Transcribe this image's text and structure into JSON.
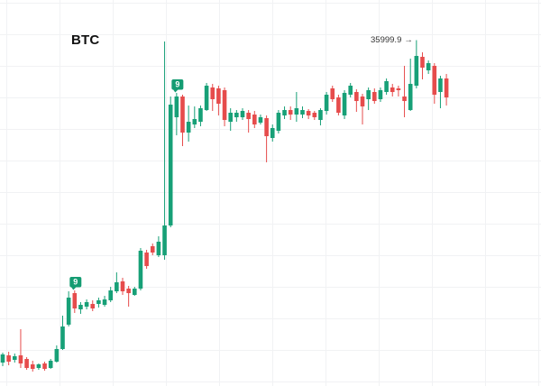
{
  "chart": {
    "title": "BTC"
  },
  "chart_data": {
    "type": "candlestick",
    "title": "BTC",
    "subtitle": "",
    "xlabel": "",
    "ylabel": "",
    "legend": "none",
    "grid": {
      "show": true,
      "h_offset": 3,
      "h_spacing": 35,
      "v_offset": 7,
      "v_spacing": 59
    },
    "ylim": [
      14140.4,
      38536.4
    ],
    "price_label": {
      "text": "35999.9",
      "arrow": "→",
      "candle_index": 69
    },
    "markers": [
      {
        "label": "9",
        "candle_index": 12
      },
      {
        "label": "9",
        "candle_index": 29
      }
    ],
    "colors": {
      "bull": "#17A077",
      "bear": "#E64C4C",
      "marker_bg": "#149C72",
      "marker_text": "#FFFFFF",
      "grid": "#F1F2F4",
      "label_text": "#333333",
      "title_text": "#111111",
      "background": "#FFFFFF"
    },
    "candles": [
      [
        15622,
        16249,
        15394,
        16135
      ],
      [
        16078,
        16306,
        15451,
        15679
      ],
      [
        15793,
        16192,
        15622,
        16021
      ],
      [
        16078,
        17731,
        15280,
        15565
      ],
      [
        15850,
        15964,
        15166,
        15280
      ],
      [
        15508,
        15736,
        15052,
        15223
      ],
      [
        15280,
        15565,
        15166,
        15508
      ],
      [
        15565,
        15679,
        15109,
        15223
      ],
      [
        15280,
        15850,
        15223,
        15736
      ],
      [
        15679,
        16705,
        15622,
        16477
      ],
      [
        16477,
        18586,
        16420,
        17902
      ],
      [
        18016,
        20125,
        17902,
        19726
      ],
      [
        20011,
        20182,
        18757,
        19042
      ],
      [
        18985,
        19441,
        18700,
        19270
      ],
      [
        19156,
        19612,
        18985,
        19441
      ],
      [
        19327,
        19555,
        18871,
        19042
      ],
      [
        19327,
        19726,
        19099,
        19555
      ],
      [
        19270,
        19840,
        19156,
        19612
      ],
      [
        19555,
        20410,
        19441,
        20182
      ],
      [
        20125,
        21322,
        20011,
        20695
      ],
      [
        20752,
        20980,
        19897,
        20125
      ],
      [
        20296,
        20467,
        19156,
        20011
      ],
      [
        19897,
        20410,
        19840,
        20296
      ],
      [
        20296,
        22861,
        20182,
        22690
      ],
      [
        22576,
        22747,
        21550,
        21721
      ],
      [
        22975,
        23146,
        22405,
        22576
      ],
      [
        22405,
        23602,
        22291,
        23260
      ],
      [
        22405,
        35914,
        22120,
        24286
      ],
      [
        24286,
        32437,
        24172,
        31924
      ],
      [
        31126,
        32665,
        29986,
        32437
      ],
      [
        32437,
        32551,
        29302,
        30157
      ],
      [
        30157,
        31867,
        29587,
        30841
      ],
      [
        30670,
        31810,
        30442,
        31012
      ],
      [
        30841,
        31867,
        30556,
        31696
      ],
      [
        31582,
        33292,
        31525,
        33121
      ],
      [
        33007,
        33235,
        31525,
        32266
      ],
      [
        32950,
        33121,
        31240,
        31981
      ],
      [
        32836,
        33007,
        30556,
        30955
      ],
      [
        30841,
        31696,
        30271,
        31411
      ],
      [
        31126,
        31582,
        30841,
        31411
      ],
      [
        31126,
        31696,
        30955,
        31525
      ],
      [
        31411,
        31582,
        30157,
        31012
      ],
      [
        31297,
        31525,
        30442,
        30670
      ],
      [
        30784,
        31297,
        30670,
        31126
      ],
      [
        31069,
        31240,
        28276,
        29929
      ],
      [
        29815,
        30670,
        29587,
        30442
      ],
      [
        30271,
        31582,
        30100,
        31411
      ],
      [
        31240,
        31810,
        31012,
        31582
      ],
      [
        31582,
        31810,
        30955,
        31297
      ],
      [
        31297,
        32722,
        30841,
        31696
      ],
      [
        31297,
        31810,
        31069,
        31582
      ],
      [
        31525,
        31639,
        31012,
        31240
      ],
      [
        31411,
        31525,
        30955,
        31126
      ],
      [
        30955,
        31696,
        30613,
        31582
      ],
      [
        31525,
        32722,
        31297,
        32551
      ],
      [
        32950,
        33121,
        32095,
        32266
      ],
      [
        32380,
        32551,
        31240,
        31411
      ],
      [
        31240,
        32836,
        31012,
        32665
      ],
      [
        32551,
        33292,
        32380,
        33121
      ],
      [
        32722,
        32893,
        31468,
        32152
      ],
      [
        32437,
        32608,
        30670,
        31810
      ],
      [
        32266,
        33007,
        31582,
        32836
      ],
      [
        32722,
        32950,
        31981,
        32152
      ],
      [
        32266,
        33007,
        32095,
        32836
      ],
      [
        32722,
        33577,
        32551,
        33406
      ],
      [
        33007,
        33235,
        32437,
        32722
      ],
      [
        32950,
        33121,
        32437,
        32836
      ],
      [
        32437,
        34375,
        31126,
        32152
      ],
      [
        31582,
        34831,
        31525,
        33235
      ],
      [
        33121,
        35999.9,
        32950,
        35002
      ],
      [
        34945,
        35230,
        33520,
        34261
      ],
      [
        34090,
        34717,
        33862,
        34546
      ],
      [
        34375,
        34546,
        31981,
        32551
      ],
      [
        32722,
        33748,
        31696,
        33577
      ],
      [
        33577,
        33862,
        31867,
        32380
      ]
    ]
  }
}
